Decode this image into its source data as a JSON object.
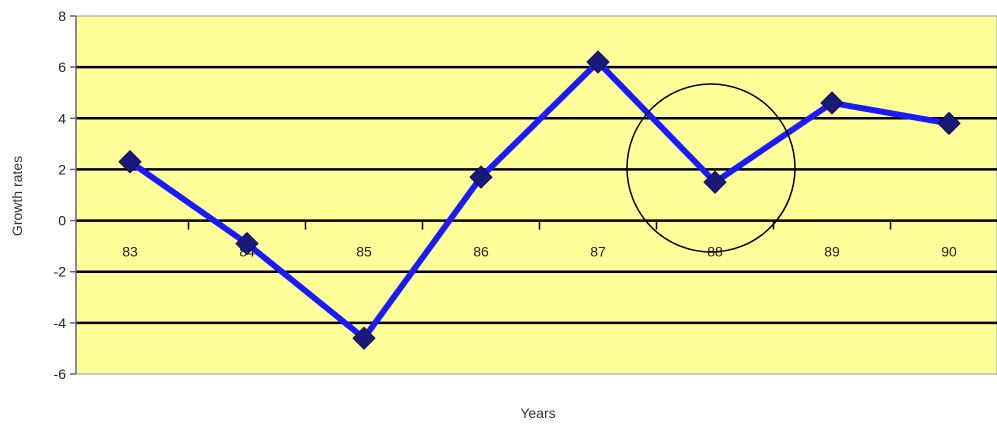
{
  "chart_data": {
    "type": "line",
    "title": "",
    "xlabel": "Years",
    "ylabel": "Growth rates",
    "categories": [
      "83",
      "84",
      "85",
      "86",
      "87",
      "88",
      "89",
      "90"
    ],
    "series": [
      {
        "values": [
          2.3,
          -0.9,
          -4.6,
          1.7,
          6.2,
          1.5,
          4.6,
          3.8
        ],
        "color": "#1a1aff",
        "marker": "diamond",
        "marker_color": "#1a1a7a"
      }
    ],
    "ylim": [
      -6,
      8
    ],
    "yticks": [
      8,
      6,
      4,
      2,
      0,
      -2,
      -4,
      -6
    ],
    "grid": true,
    "legend": "none",
    "plot_background": "#ffff99",
    "highlight": {
      "category": "88",
      "shape": "circle"
    }
  }
}
